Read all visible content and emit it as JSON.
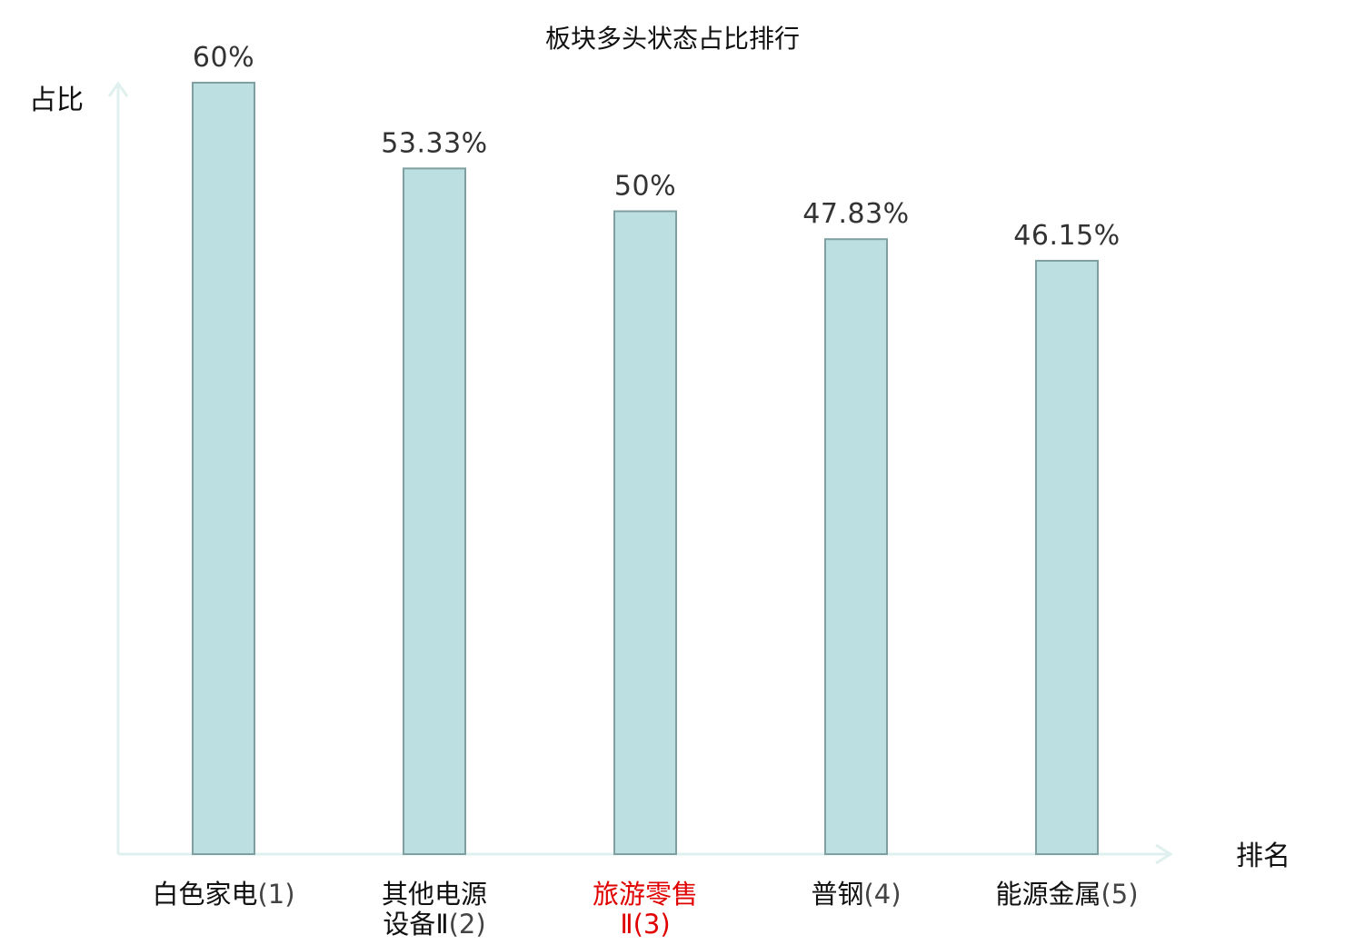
{
  "chart_data": {
    "type": "bar",
    "title": "板块多头状态占比排行",
    "ylabel": "占比",
    "xlabel": "排名",
    "categories": [
      {
        "name_lines": [
          "白色家电"
        ],
        "rank": "(1)",
        "highlight": false
      },
      {
        "name_lines": [
          "其他电源",
          "设备Ⅱ"
        ],
        "rank": "(2)",
        "highlight": false
      },
      {
        "name_lines": [
          "旅游零售",
          "Ⅱ"
        ],
        "rank": "(3)",
        "highlight": true
      },
      {
        "name_lines": [
          "普钢"
        ],
        "rank": "(4)",
        "highlight": false
      },
      {
        "name_lines": [
          "能源金属"
        ],
        "rank": "(5)",
        "highlight": false
      }
    ],
    "values": [
      60,
      53.33,
      50,
      47.83,
      46.15
    ],
    "value_labels": [
      "60%",
      "53.33%",
      "50%",
      "47.83%",
      "46.15%"
    ],
    "ylim": [
      0,
      60
    ],
    "grid": false,
    "legend": "none",
    "colors": {
      "bar_fill": "#bce0e2",
      "bar_stroke": "#7f9fa1",
      "axis": "#dff0ee",
      "highlight_text": "#e00000"
    }
  }
}
